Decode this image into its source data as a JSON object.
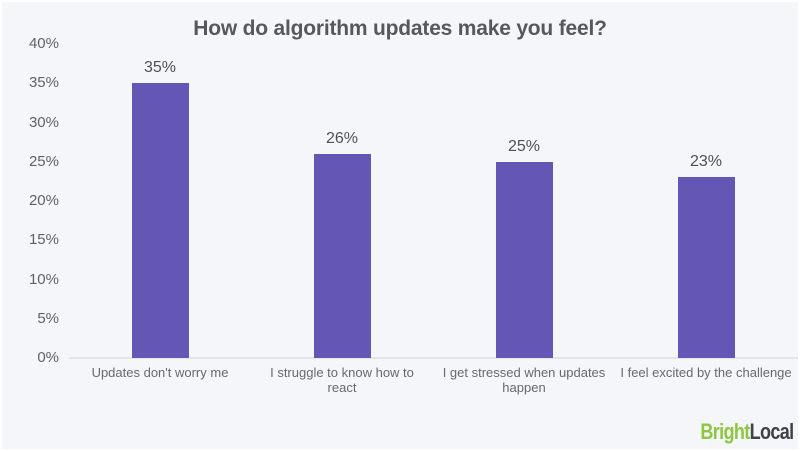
{
  "chart_data": {
    "type": "bar",
    "title": "How do algorithm updates make you feel?",
    "categories": [
      "Updates don't worry me",
      "I struggle to know how to react",
      "I get stressed when updates happen",
      "I feel excited by the challenge"
    ],
    "category_lines": [
      [
        "Updates don't worry me"
      ],
      [
        "I struggle to know how to",
        "react"
      ],
      [
        "I get stressed when updates",
        "happen"
      ],
      [
        "I feel excited by the challenge"
      ]
    ],
    "values": [
      35,
      26,
      25,
      23
    ],
    "value_labels": [
      "35%",
      "26%",
      "25%",
      "23%"
    ],
    "xlabel": "",
    "ylabel": "",
    "ylim": [
      0,
      40
    ],
    "ytick_step": 5,
    "ytick_labels": [
      "0%",
      "5%",
      "10%",
      "15%",
      "20%",
      "25%",
      "30%",
      "35%",
      "40%"
    ],
    "grid": false,
    "legend_position": "none",
    "bar_color": "#6456b4"
  },
  "branding": {
    "logo_part1": "Bright",
    "logo_part2": "Local",
    "logo_green": "#8dc63f",
    "logo_dark": "#3e4147"
  },
  "colors": {
    "background": "#f4f6f9",
    "frame": "#ffffff",
    "axis_line": "#e2e5ea",
    "title_text": "#57585a",
    "tick_text": "#5e6368",
    "value_text": "#4d5156",
    "category_text": "#66696e"
  }
}
